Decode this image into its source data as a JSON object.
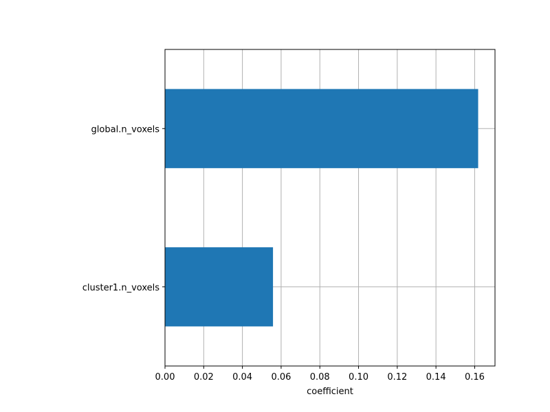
{
  "chart_data": {
    "type": "bar",
    "orientation": "horizontal",
    "categories": [
      "cluster1.n_voxels",
      "global.n_voxels"
    ],
    "values": [
      0.0558,
      0.1618
    ],
    "title": "",
    "xlabel": "coefficient",
    "ylabel": "",
    "xlim": [
      0.0,
      0.1705
    ],
    "x_ticks": [
      0.0,
      0.02,
      0.04,
      0.06,
      0.08,
      0.1,
      0.12,
      0.14,
      0.16
    ],
    "x_tick_labels": [
      "0.00",
      "0.02",
      "0.04",
      "0.06",
      "0.08",
      "0.10",
      "0.12",
      "0.14",
      "0.16"
    ],
    "grid": true,
    "legend": "none",
    "colors": {
      "bar": "#1f77b4",
      "grid": "#b0b0b0",
      "axis": "#000000"
    }
  }
}
